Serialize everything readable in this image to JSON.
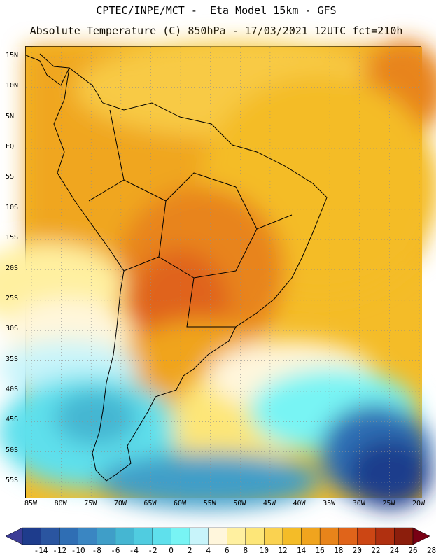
{
  "header": {
    "line1": "CPTEC/INPE/MCT -  Eta Model 15km - GFS",
    "line2": "Absolute Temperature (C) 850hPa - 17/03/2021 12UTC fct=210h"
  },
  "axes": {
    "lat_labels": [
      "15N",
      "10N",
      "5N",
      "EQ",
      "5S",
      "10S",
      "15S",
      "20S",
      "25S",
      "30S",
      "35S",
      "40S",
      "45S",
      "50S",
      "55S"
    ],
    "lat_values": [
      15,
      10,
      5,
      0,
      -5,
      -10,
      -15,
      -20,
      -25,
      -30,
      -35,
      -40,
      -45,
      -50,
      -55
    ],
    "lon_labels": [
      "85W",
      "80W",
      "75W",
      "70W",
      "65W",
      "60W",
      "55W",
      "50W",
      "45W",
      "40W",
      "35W",
      "30W",
      "25W",
      "20W"
    ],
    "lon_values": [
      -85,
      -80,
      -75,
      -70,
      -65,
      -60,
      -55,
      -50,
      -45,
      -40,
      -35,
      -30,
      -25,
      -20
    ]
  },
  "colorbar": {
    "labels": [
      "-14",
      "-12",
      "-10",
      "-8",
      "-6",
      "-4",
      "-2",
      "0",
      "2",
      "4",
      "6",
      "8",
      "10",
      "12",
      "14",
      "16",
      "18",
      "20",
      "22",
      "24",
      "26",
      "28"
    ],
    "colors": [
      "#1e3c8c",
      "#2a55a0",
      "#2f6eb4",
      "#3a86c2",
      "#3f9ec8",
      "#45b6d2",
      "#50cce0",
      "#5fe0ec",
      "#78f4f4",
      "#c8f4fa",
      "#fff6dc",
      "#fff0a0",
      "#fde678",
      "#fad250",
      "#f4bc28",
      "#f0a41e",
      "#e8841a",
      "#e0641a",
      "#cc4614",
      "#b03010",
      "#8c1e0c"
    ],
    "under_color": "#3c3c96",
    "over_color": "#780014"
  },
  "colors": {
    "land_outline": "#000000",
    "grid": "#909090",
    "background": "#ffffff"
  }
}
